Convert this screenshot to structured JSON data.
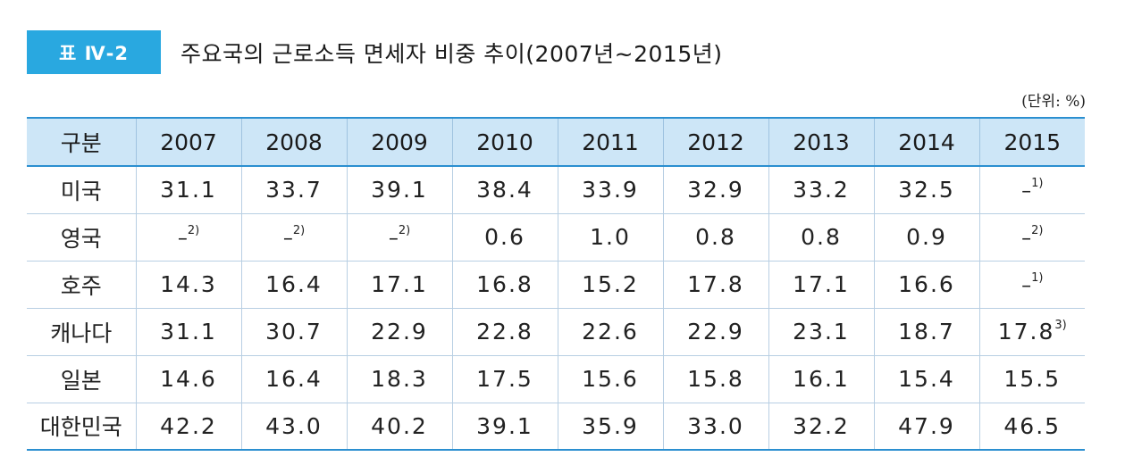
{
  "title": {
    "badge": "표 Ⅳ-2",
    "text": "주요국의 근로소득 면세자 비중 추이(2007년~2015년)"
  },
  "unit": "(단위: %)",
  "table": {
    "header": [
      "구분",
      "2007",
      "2008",
      "2009",
      "2010",
      "2011",
      "2012",
      "2013",
      "2014",
      "2015"
    ],
    "rows": [
      {
        "label": "미국",
        "cells": [
          {
            "v": "31.1",
            "s": ""
          },
          {
            "v": "33.7",
            "s": ""
          },
          {
            "v": "39.1",
            "s": ""
          },
          {
            "v": "38.4",
            "s": ""
          },
          {
            "v": "33.9",
            "s": ""
          },
          {
            "v": "32.9",
            "s": ""
          },
          {
            "v": "33.2",
            "s": ""
          },
          {
            "v": "32.5",
            "s": ""
          },
          {
            "v": "–",
            "s": "1)"
          }
        ]
      },
      {
        "label": "영국",
        "cells": [
          {
            "v": "–",
            "s": "2)"
          },
          {
            "v": "–",
            "s": "2)"
          },
          {
            "v": "–",
            "s": "2)"
          },
          {
            "v": "0.6",
            "s": ""
          },
          {
            "v": "1.0",
            "s": ""
          },
          {
            "v": "0.8",
            "s": ""
          },
          {
            "v": "0.8",
            "s": ""
          },
          {
            "v": "0.9",
            "s": ""
          },
          {
            "v": "–",
            "s": "2)"
          }
        ]
      },
      {
        "label": "호주",
        "cells": [
          {
            "v": "14.3",
            "s": ""
          },
          {
            "v": "16.4",
            "s": ""
          },
          {
            "v": "17.1",
            "s": ""
          },
          {
            "v": "16.8",
            "s": ""
          },
          {
            "v": "15.2",
            "s": ""
          },
          {
            "v": "17.8",
            "s": ""
          },
          {
            "v": "17.1",
            "s": ""
          },
          {
            "v": "16.6",
            "s": ""
          },
          {
            "v": "–",
            "s": "1)"
          }
        ]
      },
      {
        "label": "캐나다",
        "cells": [
          {
            "v": "31.1",
            "s": ""
          },
          {
            "v": "30.7",
            "s": ""
          },
          {
            "v": "22.9",
            "s": ""
          },
          {
            "v": "22.8",
            "s": ""
          },
          {
            "v": "22.6",
            "s": ""
          },
          {
            "v": "22.9",
            "s": ""
          },
          {
            "v": "23.1",
            "s": ""
          },
          {
            "v": "18.7",
            "s": ""
          },
          {
            "v": "17.8",
            "s": "3)"
          }
        ]
      },
      {
        "label": "일본",
        "cells": [
          {
            "v": "14.6",
            "s": ""
          },
          {
            "v": "16.4",
            "s": ""
          },
          {
            "v": "18.3",
            "s": ""
          },
          {
            "v": "17.5",
            "s": ""
          },
          {
            "v": "15.6",
            "s": ""
          },
          {
            "v": "15.8",
            "s": ""
          },
          {
            "v": "16.1",
            "s": ""
          },
          {
            "v": "15.4",
            "s": ""
          },
          {
            "v": "15.5",
            "s": ""
          }
        ]
      },
      {
        "label": "대한민국",
        "cells": [
          {
            "v": "42.2",
            "s": ""
          },
          {
            "v": "43.0",
            "s": ""
          },
          {
            "v": "40.2",
            "s": ""
          },
          {
            "v": "39.1",
            "s": ""
          },
          {
            "v": "35.9",
            "s": ""
          },
          {
            "v": "33.0",
            "s": ""
          },
          {
            "v": "32.2",
            "s": ""
          },
          {
            "v": "47.9",
            "s": ""
          },
          {
            "v": "46.5",
            "s": ""
          }
        ]
      }
    ]
  },
  "colors": {
    "badge": "#29a8e0",
    "header_bg": "#cde6f7",
    "rule": "#2b8fd0"
  }
}
